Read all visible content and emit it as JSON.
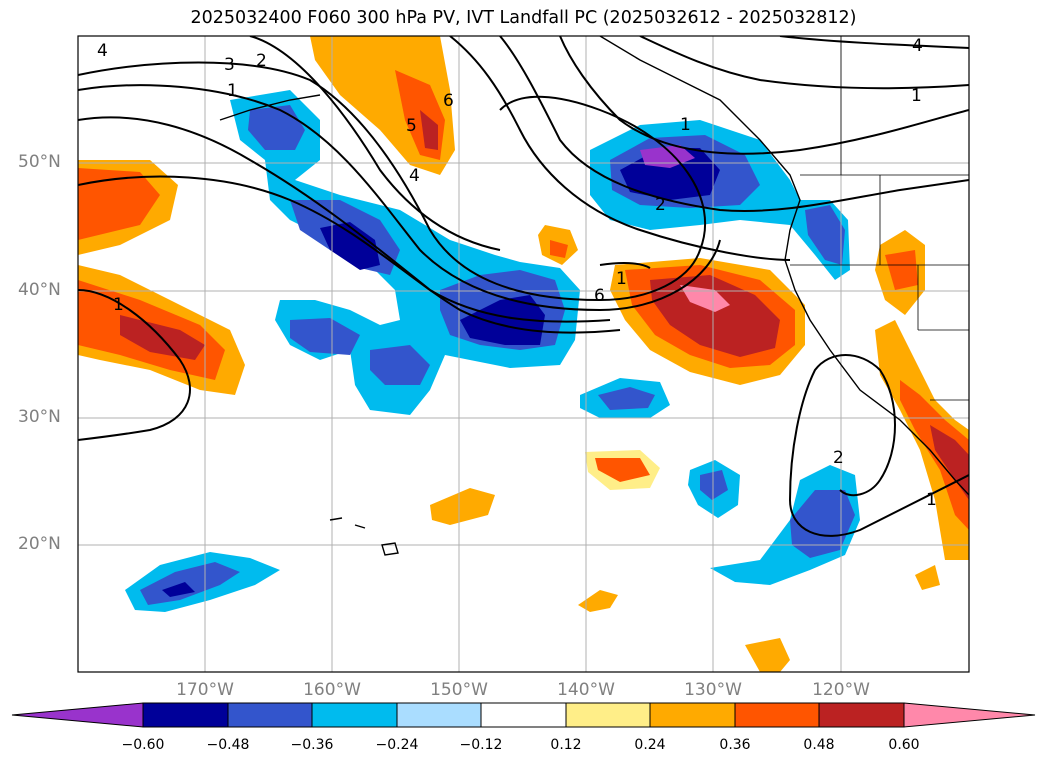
{
  "title": "2025032400 F060 300 hPa PV, IVT Landfall PC (2025032612 - 2025032812)",
  "map": {
    "lat_labels": [
      "50°N",
      "40°N",
      "30°N",
      "20°N"
    ],
    "lon_labels": [
      "170°W",
      "160°W",
      "150°W",
      "140°W",
      "130°W",
      "120°W"
    ],
    "pv_contour_labels": [
      "4",
      "3",
      "2",
      "1",
      "6",
      "5",
      "4",
      "2",
      "1",
      "6",
      "1",
      "1",
      "4",
      "1",
      "2",
      "1"
    ]
  },
  "colorbar": {
    "ticks": [
      "−0.60",
      "−0.48",
      "−0.36",
      "−0.24",
      "−0.12",
      "0.12",
      "0.24",
      "0.36",
      "0.48",
      "0.60"
    ],
    "colors": [
      "#9933cc",
      "#000099",
      "#3355cc",
      "#00bbee",
      "#aaddff",
      "#ffffff",
      "#ffee88",
      "#ffaa00",
      "#ff5500",
      "#bb2222",
      "#ff88aa"
    ]
  }
}
